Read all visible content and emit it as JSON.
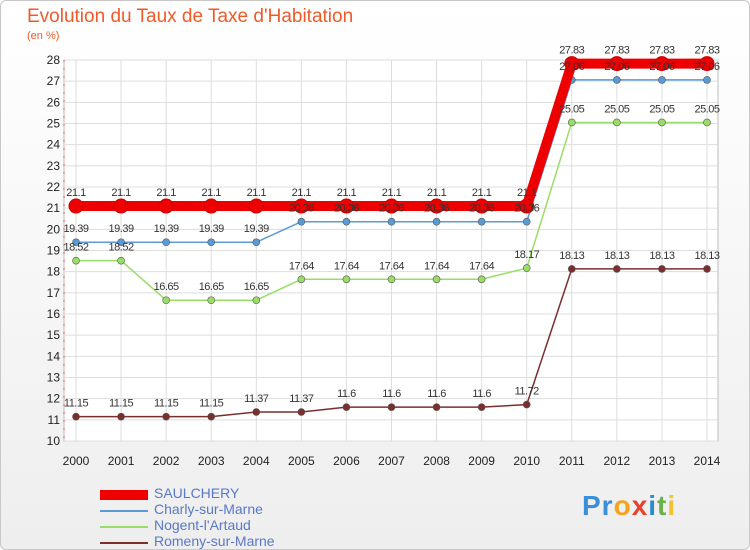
{
  "title": "Evolution du Taux de Taxe d'Habitation",
  "unit_label": "(en %)",
  "brand": {
    "parts": [
      "Pr",
      "o",
      "x",
      "i",
      "t",
      "i"
    ],
    "colors": [
      "#3a8fd8",
      "#f7a21b",
      "#e8422c",
      "#2e8bc9",
      "#6ab04c",
      "#f2c12e"
    ]
  },
  "chart_data": {
    "type": "line",
    "x": [
      "2000",
      "2001",
      "2002",
      "2003",
      "2004",
      "2005",
      "2006",
      "2007",
      "2008",
      "2009",
      "2010",
      "2011",
      "2012",
      "2013",
      "2014"
    ],
    "ylim": [
      10,
      28
    ],
    "yticks": [
      10,
      11,
      12,
      13,
      14,
      15,
      16,
      17,
      18,
      19,
      20,
      21,
      22,
      23,
      24,
      25,
      26,
      27,
      28
    ],
    "grid": true,
    "legend_placement": "bottom-left",
    "series": [
      {
        "name": "SAULCHERY",
        "color": "#ee0000",
        "values": [
          21.1,
          21.1,
          21.1,
          21.1,
          21.1,
          21.1,
          21.1,
          21.1,
          21.1,
          21.1,
          21.1,
          27.83,
          27.83,
          27.83,
          27.83
        ],
        "labels": [
          "21.1",
          "21.1",
          "21.1",
          "21.1",
          "21.1",
          "21.1",
          "21.1",
          "21.1",
          "21.1",
          "21.1",
          "21.1",
          "27.83",
          "27.83",
          "27.83",
          "27.83"
        ]
      },
      {
        "name": "Charly-sur-Marne",
        "color": "#5b9bd5",
        "values": [
          19.39,
          19.39,
          19.39,
          19.39,
          19.39,
          20.36,
          20.36,
          20.36,
          20.36,
          20.36,
          20.36,
          27.06,
          27.06,
          27.06,
          27.06
        ],
        "labels": [
          "19.39",
          "19.39",
          "19.39",
          "19.39",
          "19.39",
          "20.36",
          "20.36",
          "20.36",
          "20.36",
          "20.36",
          "20.36",
          "27.06",
          "27.06",
          "27.06",
          "27.06"
        ]
      },
      {
        "name": "Nogent-l'Artaud",
        "color": "#99dd66",
        "values": [
          18.52,
          18.52,
          16.65,
          16.65,
          16.65,
          17.64,
          17.64,
          17.64,
          17.64,
          17.64,
          18.17,
          25.05,
          25.05,
          25.05,
          25.05
        ],
        "labels": [
          "18.52",
          "18.52",
          "16.65",
          "16.65",
          "16.65",
          "17.64",
          "17.64",
          "17.64",
          "17.64",
          "17.64",
          "18.17",
          "25.05",
          "25.05",
          "25.05",
          "25.05"
        ]
      },
      {
        "name": "Romeny-sur-Marne",
        "color": "#7a2e2e",
        "values": [
          11.15,
          11.15,
          11.15,
          11.15,
          11.37,
          11.37,
          11.6,
          11.6,
          11.6,
          11.6,
          11.72,
          18.13,
          18.13,
          18.13,
          18.13
        ],
        "labels": [
          "11.15",
          "11.15",
          "11.15",
          "11.15",
          "11.37",
          "11.37",
          "11.6",
          "11.6",
          "11.6",
          "11.6",
          "11.72",
          "18.13",
          "18.13",
          "18.13",
          "18.13"
        ]
      }
    ]
  }
}
